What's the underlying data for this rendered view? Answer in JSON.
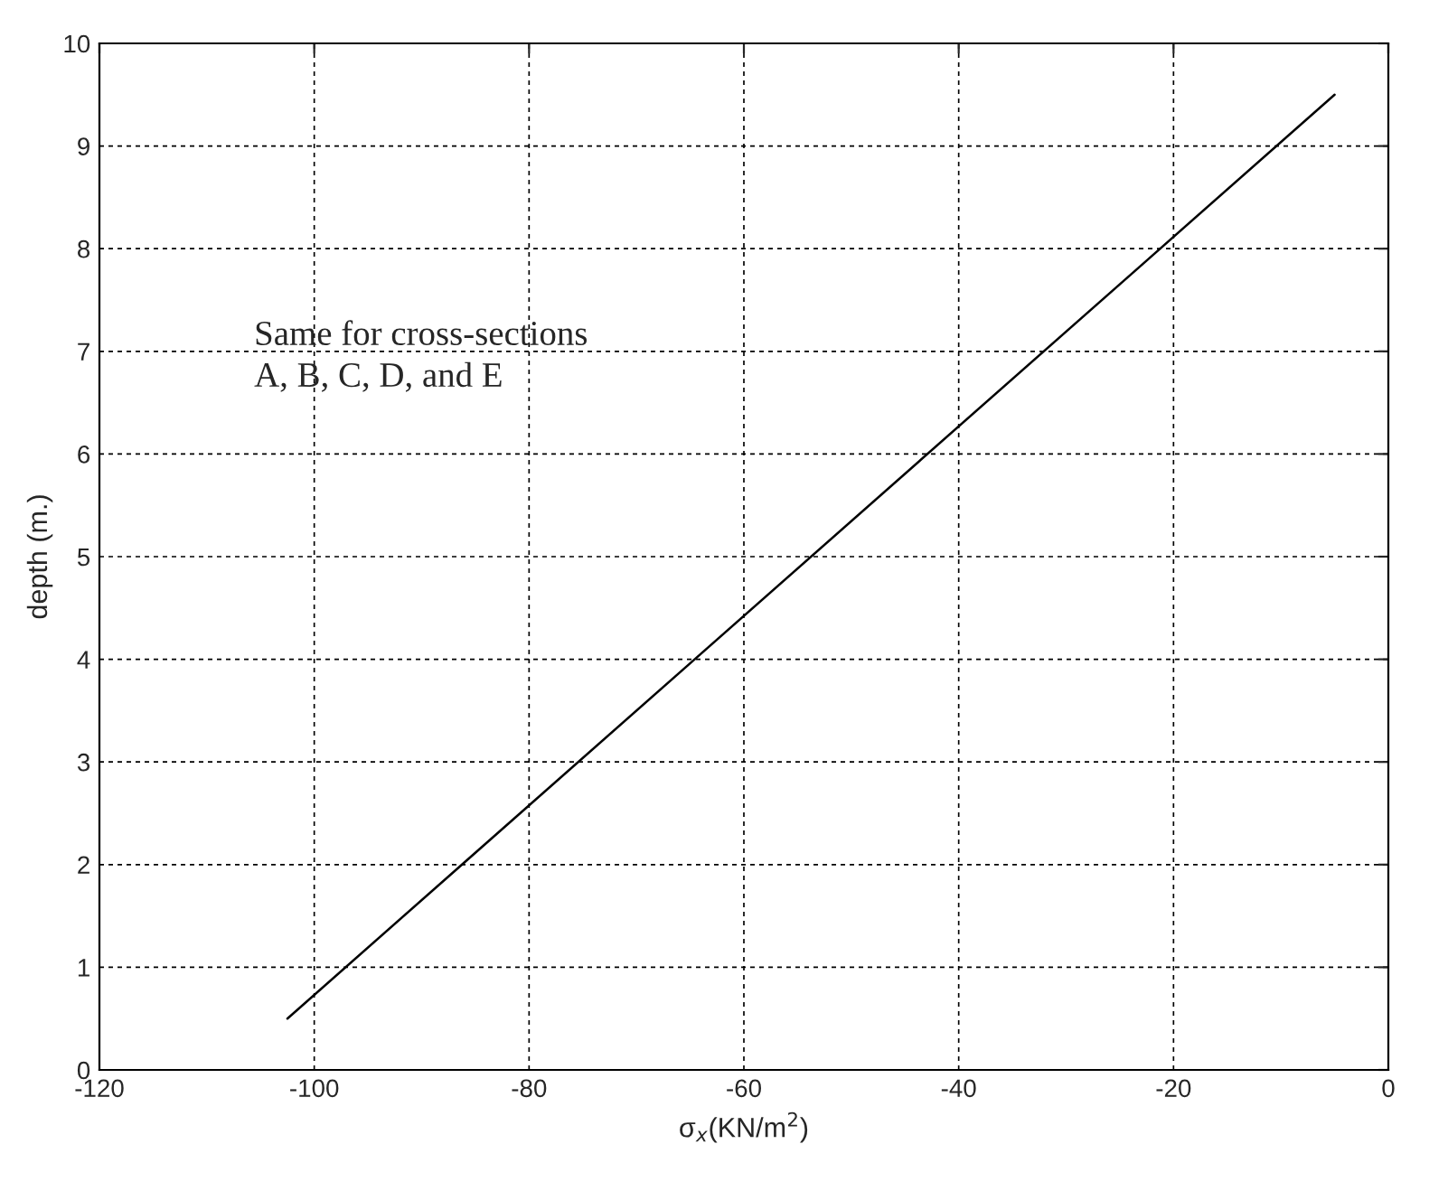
{
  "chart_data": {
    "type": "line",
    "xlabel": "σ$_{x}$(KN/m$^{2}$)",
    "ylabel": "depth (m.)",
    "series": [
      {
        "color": "#000000",
        "x": [
          -102.5,
          -5
        ],
        "values": [
          0.5,
          9.5
        ]
      }
    ],
    "xlim": [
      -120,
      0
    ],
    "xticks": [
      -120,
      -100,
      -80,
      -60,
      -40,
      -20,
      0
    ],
    "ylim": [
      0,
      10
    ],
    "yticks": [
      0,
      1,
      2,
      3,
      4,
      5,
      6,
      7,
      8,
      9,
      10
    ],
    "grid": true,
    "line_style": "solid",
    "marker": "none",
    "annotations": [
      "Same for cross-sections\nA, B, C, D, and E"
    ]
  }
}
